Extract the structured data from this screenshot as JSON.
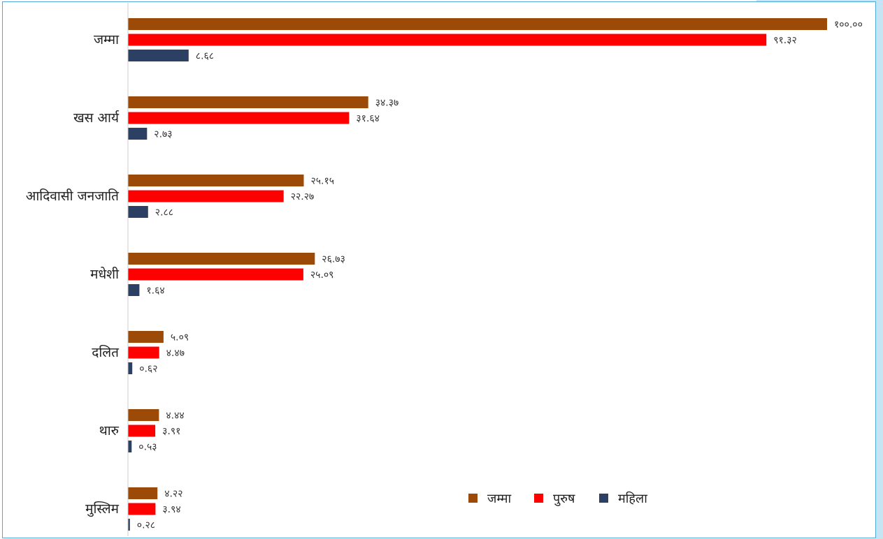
{
  "colors": {
    "jamma": "#9c4a08",
    "purush": "#ff0000",
    "mahila": "#2c4063",
    "axis": "#cccccc",
    "frame": "#4fa9d8"
  },
  "chart_data": {
    "type": "bar",
    "orientation": "horizontal",
    "categories": [
      "जम्मा",
      "खस आर्य",
      "आदिवासी जनजाति",
      "मधेशी",
      "दलित",
      "थारु",
      "मुस्लिम"
    ],
    "series": [
      {
        "name": "जम्मा",
        "values": [
          100.0,
          34.37,
          25.15,
          26.73,
          5.09,
          4.44,
          4.22
        ],
        "labels": [
          "१००.००",
          "३४.३७",
          "२५.१५",
          "२६.७३",
          "५.०९",
          "४.४४",
          "४.२२"
        ]
      },
      {
        "name": "पुरुष",
        "values": [
          91.32,
          31.64,
          22.27,
          25.09,
          4.47,
          3.91,
          3.94
        ],
        "labels": [
          "९१.३२",
          "३१.६४",
          "२२.२७",
          "२५.०९",
          "४.४७",
          "३.९१",
          "३.९४"
        ]
      },
      {
        "name": "महिला",
        "values": [
          8.68,
          2.73,
          2.88,
          1.64,
          0.62,
          0.53,
          0.28
        ],
        "labels": [
          "८.६८",
          "२.७३",
          "२.८८",
          "१.६४",
          "०.६२",
          "०.५३",
          "०.२८"
        ]
      }
    ],
    "xlim": [
      0,
      100
    ],
    "grid": false,
    "legend_position": "bottom-center"
  }
}
